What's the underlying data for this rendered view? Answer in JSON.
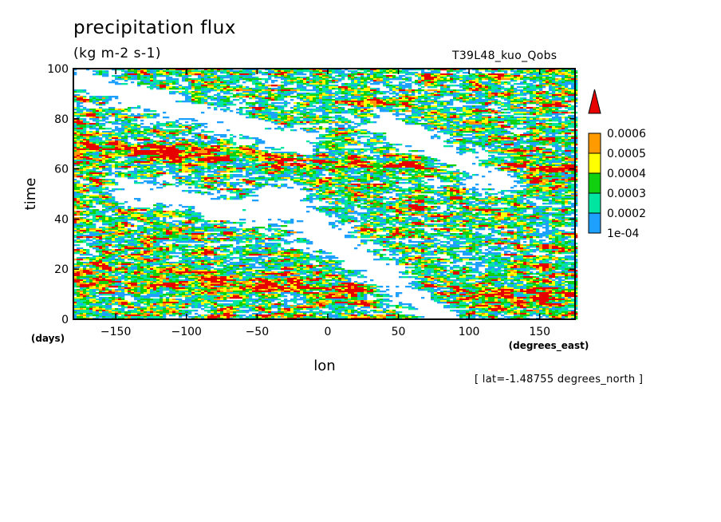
{
  "header": {
    "title": "precipitation flux",
    "units": "(kg m-2 s-1)",
    "experiment": "T39L48_kuo_Qobs"
  },
  "footnote": "[ lat=-1.48755 degrees_north ]",
  "chart_data": {
    "type": "heatmap",
    "title": "precipitation flux",
    "subtitle": "(kg m-2 s-1)",
    "xlabel": "lon",
    "x_units": "(degrees_east)",
    "ylabel": "time",
    "y_units": "(days)",
    "xlim": [
      -180,
      175
    ],
    "ylim": [
      0,
      100
    ],
    "x_ticks": [
      -150,
      -100,
      -50,
      0,
      50,
      100,
      150
    ],
    "x_tick_labels": [
      "-150",
      "-100",
      "-50",
      "0",
      "50",
      "100",
      "150"
    ],
    "y_ticks": [
      0,
      20,
      40,
      60,
      80,
      100
    ],
    "y_tick_labels": [
      "0",
      "20",
      "40",
      "60",
      "80",
      "100"
    ],
    "grid": false,
    "colorbar": {
      "levels": [
        0.0001,
        0.0002,
        0.0003,
        0.0004,
        0.0005,
        0.0006
      ],
      "labels": [
        "1e-04",
        "0.0002",
        "0.0003",
        "0.0004",
        "0.0005",
        "0.0006"
      ],
      "colors": [
        "#1ea0ff",
        "#00e5a0",
        "#10d010",
        "#ffff00",
        "#ff9b00",
        "#e60000"
      ],
      "extend": "max",
      "position": "right"
    },
    "pattern": {
      "description_level": "qualitative",
      "features": [
        {
          "type": "dry_band",
          "x_start": 80,
          "y_start": 0,
          "x_end": -40,
          "y_end": 50
        },
        {
          "type": "dry_band",
          "x_start": 120,
          "y_start": 55,
          "x_end": 40,
          "y_end": 78
        },
        {
          "type": "dry_band",
          "x_start": -50,
          "y_start": 42,
          "x_end": -140,
          "y_end": 52
        },
        {
          "type": "dry_band",
          "x_start": -20,
          "y_start": 70,
          "x_end": -170,
          "y_end": 95
        },
        {
          "type": "wet_band",
          "x_start": 175,
          "y_start": 8,
          "x_end": -180,
          "y_end": 18
        },
        {
          "type": "wet_band",
          "x_start": 175,
          "y_start": 60,
          "x_end": -180,
          "y_end": 68
        }
      ]
    }
  }
}
